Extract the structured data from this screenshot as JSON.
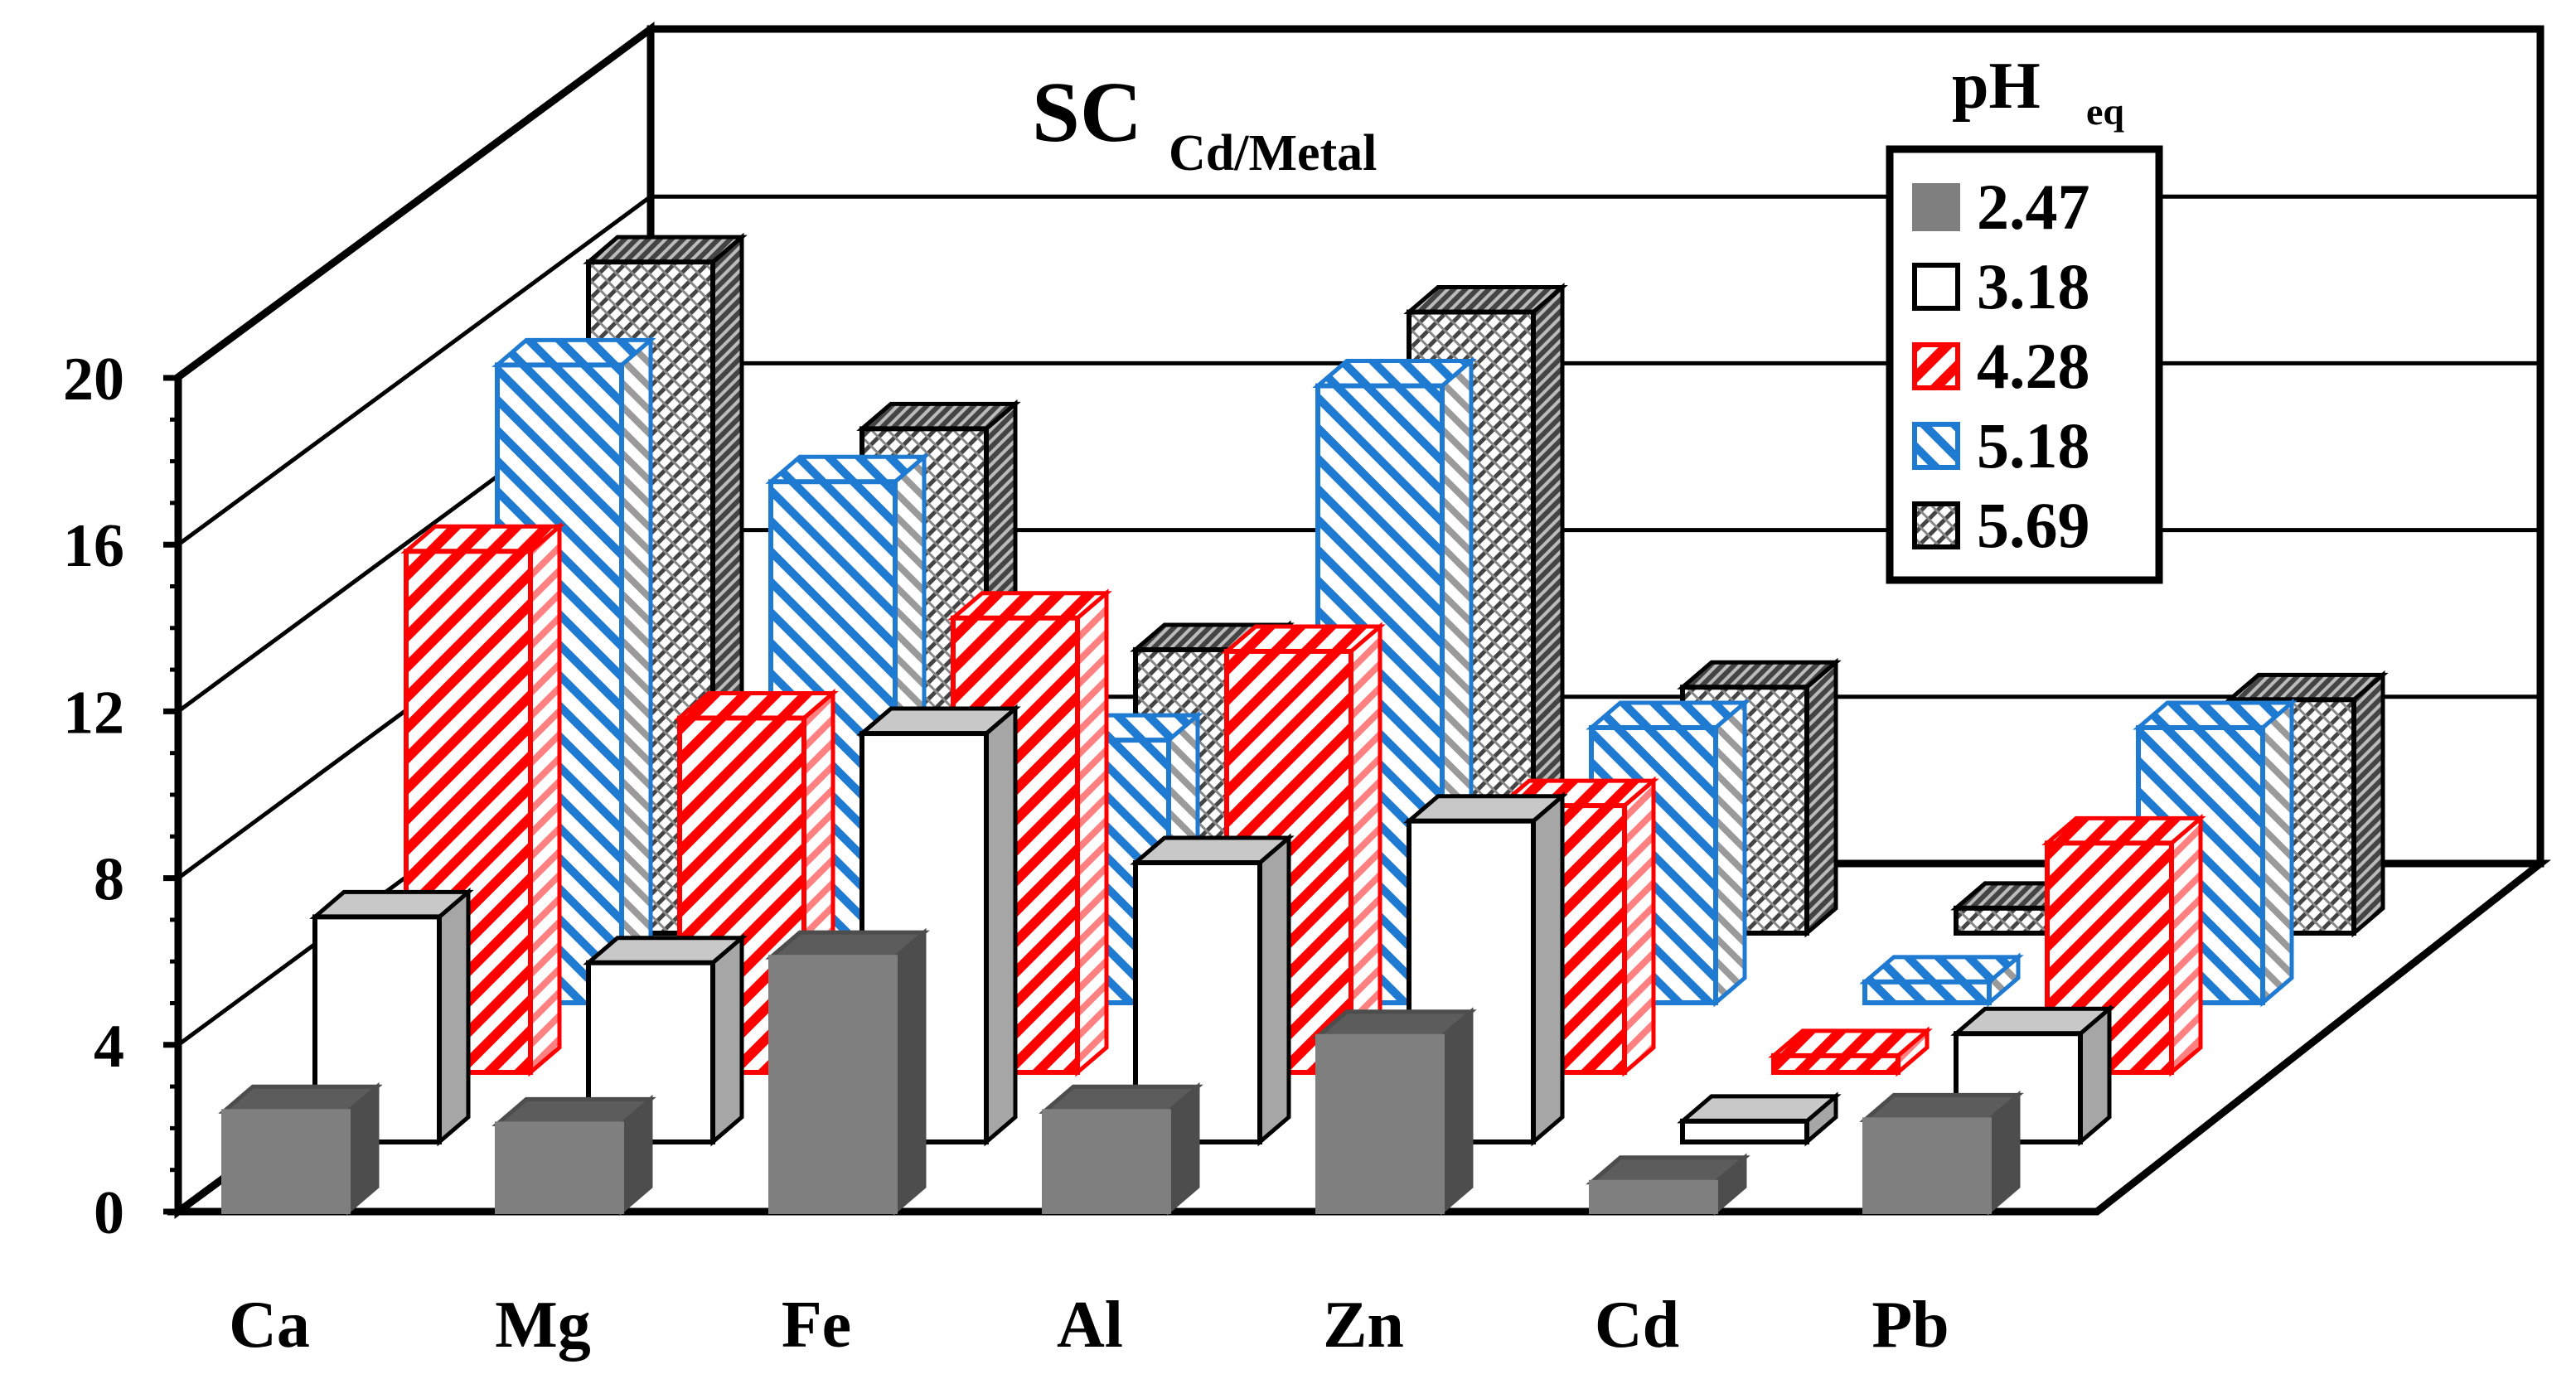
{
  "chart_data": {
    "type": "bar",
    "style": "3d-clustered-depth",
    "title": "SC",
    "title_subscript": "Cd/Metal",
    "legend_title": "pH",
    "legend_title_subscript": "eq",
    "legend_position": "top-right",
    "categories": [
      "Ca",
      "Mg",
      "Fe",
      "Al",
      "Zn",
      "Cd",
      "Pb"
    ],
    "yticks": [
      "0",
      "4",
      "8",
      "12",
      "16",
      "20"
    ],
    "ylim": [
      0,
      20
    ],
    "grid": true,
    "series": [
      {
        "name": "2.47",
        "color": "#7f7f7f",
        "pattern": "solid",
        "values": [
          2.4,
          2.1,
          6.1,
          2.4,
          4.2,
          0.7,
          2.2
        ]
      },
      {
        "name": "3.18",
        "color": "#ffffff",
        "pattern": "solid",
        "values": [
          5.4,
          4.3,
          9.8,
          6.7,
          7.7,
          0.5,
          2.6
        ]
      },
      {
        "name": "4.28",
        "color": "#ff0000",
        "pattern": "diagonal",
        "values": [
          12.5,
          8.5,
          10.9,
          10.1,
          6.4,
          0.4,
          5.5
        ]
      },
      {
        "name": "5.18",
        "color": "#1f7ad1",
        "pattern": "diagonal",
        "values": [
          15.3,
          12.5,
          6.3,
          14.8,
          6.6,
          0.5,
          6.6
        ]
      },
      {
        "name": "5.69",
        "color": "#3a3a3a",
        "pattern": "crosshatch",
        "values": [
          16.1,
          12.1,
          6.8,
          14.9,
          5.9,
          0.6,
          5.6
        ]
      }
    ]
  }
}
